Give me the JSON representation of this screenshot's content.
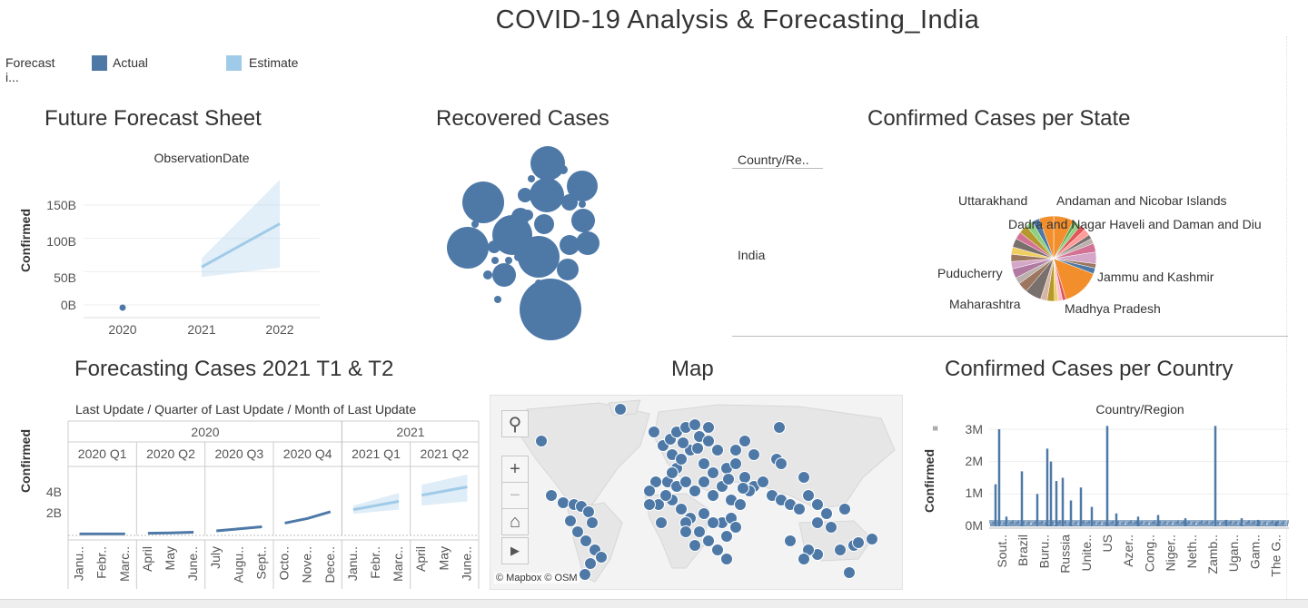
{
  "dashboard": {
    "title": "COVID-19 Analysis & Forecasting_India",
    "legend": {
      "label": "Forecast i...",
      "items": [
        {
          "label": "Actual",
          "color": "#4e79a7"
        },
        {
          "label": "Estimate",
          "color": "#a0cbe8"
        }
      ]
    }
  },
  "forecast_sheet": {
    "title": "Future Forecast Sheet",
    "header": "ObservationDate",
    "ylabel": "Confirmed",
    "yticks": [
      "150B",
      "100B",
      "50B",
      "0B"
    ],
    "xticks": [
      "2020",
      "2021",
      "2022"
    ]
  },
  "recovered": {
    "title": "Recovered Cases"
  },
  "state_panel": {
    "title": "Confirmed Cases per State",
    "column_header": "Country/Re..",
    "row_label": "India",
    "slice_labels": [
      "Uttarakhand",
      "Andaman and Nicobar Islands",
      "Dadra and Nagar Haveli and Daman and Diu",
      "Jammu and Kashmir",
      "Puducherry",
      "Maharashtra",
      "Madhya Pradesh"
    ]
  },
  "forecast_2021": {
    "title": "Forecasting Cases 2021 T1 & T2",
    "header": "Last Update  /  Quarter of Last Update  /  Month of Last Update",
    "years": [
      "2020",
      "2021"
    ],
    "quarters": [
      "2020 Q1",
      "2020 Q2",
      "2020 Q3",
      "2020 Q4",
      "2021 Q1",
      "2021 Q2"
    ],
    "months": [
      "Janu..",
      "Febr..",
      "Marc..",
      "April",
      "May",
      "June..",
      "July",
      "Augu..",
      "Sept..",
      "Octo..",
      "Nove..",
      "Dece..",
      "Janu..",
      "Febr..",
      "Marc..",
      "April",
      "May",
      "June.."
    ],
    "ylabel": "Confirmed",
    "yticks": [
      "4B",
      "2B"
    ]
  },
  "map_panel": {
    "title": "Map",
    "attribution": "© Mapbox  © OSM",
    "buttons": {
      "search": "⚲",
      "zoom_in": "+",
      "zoom_out": "−",
      "home": "⌂",
      "play": "▶"
    }
  },
  "country_panel": {
    "title": "Confirmed Cases per Country",
    "header": "Country/Region",
    "ylabel": "Confirmed",
    "yticks": [
      "3M",
      "2M",
      "1M",
      "0M"
    ],
    "xlabels": [
      "Sout..",
      "Brazil",
      "Buru..",
      "Russia",
      "Unite..",
      "US",
      "Azer..",
      "Cong..",
      "Niger..",
      "Neth..",
      "Zamb..",
      "Ugan..",
      "Gam..",
      "The G.."
    ]
  },
  "chart_data": [
    {
      "type": "line",
      "title": "Future Forecast Sheet",
      "xlabel": "ObservationDate",
      "ylabel": "Confirmed",
      "x": [
        "2020",
        "2021",
        "2022"
      ],
      "ylim": [
        0,
        160000000000
      ],
      "series": [
        {
          "name": "Actual",
          "values": [
            0,
            null,
            null
          ]
        },
        {
          "name": "Estimate",
          "values": [
            null,
            57000000000,
            122000000000
          ],
          "lower": [
            null,
            42000000000,
            56000000000
          ],
          "upper": [
            null,
            70000000000,
            188000000000
          ]
        }
      ]
    },
    {
      "type": "line",
      "title": "Forecasting Cases 2021 T1 & T2",
      "ylabel": "Confirmed",
      "ylim": [
        0,
        5000000000
      ],
      "series": [
        {
          "name": "Actual",
          "values": [
            0.05,
            0.05,
            0.06,
            0.12,
            0.15,
            0.22,
            0.35,
            0.55,
            0.75,
            1.1,
            1.55,
            2.2,
            null,
            null,
            null,
            null,
            null,
            null
          ]
        },
        {
          "name": "Estimate",
          "values": [
            null,
            null,
            null,
            null,
            null,
            null,
            null,
            null,
            null,
            null,
            null,
            null,
            2.4,
            2.8,
            3.2,
            3.8,
            4.2,
            4.6
          ],
          "lower": [
            null,
            null,
            null,
            null,
            null,
            null,
            null,
            null,
            null,
            null,
            null,
            null,
            2.0,
            2.2,
            2.4,
            2.8,
            3.0,
            3.2
          ],
          "upper": [
            null,
            null,
            null,
            null,
            null,
            null,
            null,
            null,
            null,
            null,
            null,
            null,
            2.8,
            3.4,
            4.0,
            4.8,
            5.3,
            5.8
          ]
        }
      ],
      "unit": "B"
    },
    {
      "type": "bar",
      "title": "Confirmed Cases per Country",
      "xlabel": "Country/Region",
      "ylabel": "Confirmed",
      "ylim": [
        0,
        3200000
      ],
      "categories": [
        "Sout..",
        "Brazil",
        "Buru..",
        "Russia",
        "Unite..",
        "US",
        "Azer..",
        "Cong..",
        "Niger..",
        "Neth..",
        "Zamb..",
        "Ugan..",
        "Gam..",
        "The G.."
      ],
      "values": [
        3000000,
        1700000,
        2500000,
        1800000,
        900000,
        3100000,
        500000,
        400000,
        250000,
        200000,
        3100000,
        120000,
        90000,
        60000
      ]
    }
  ]
}
